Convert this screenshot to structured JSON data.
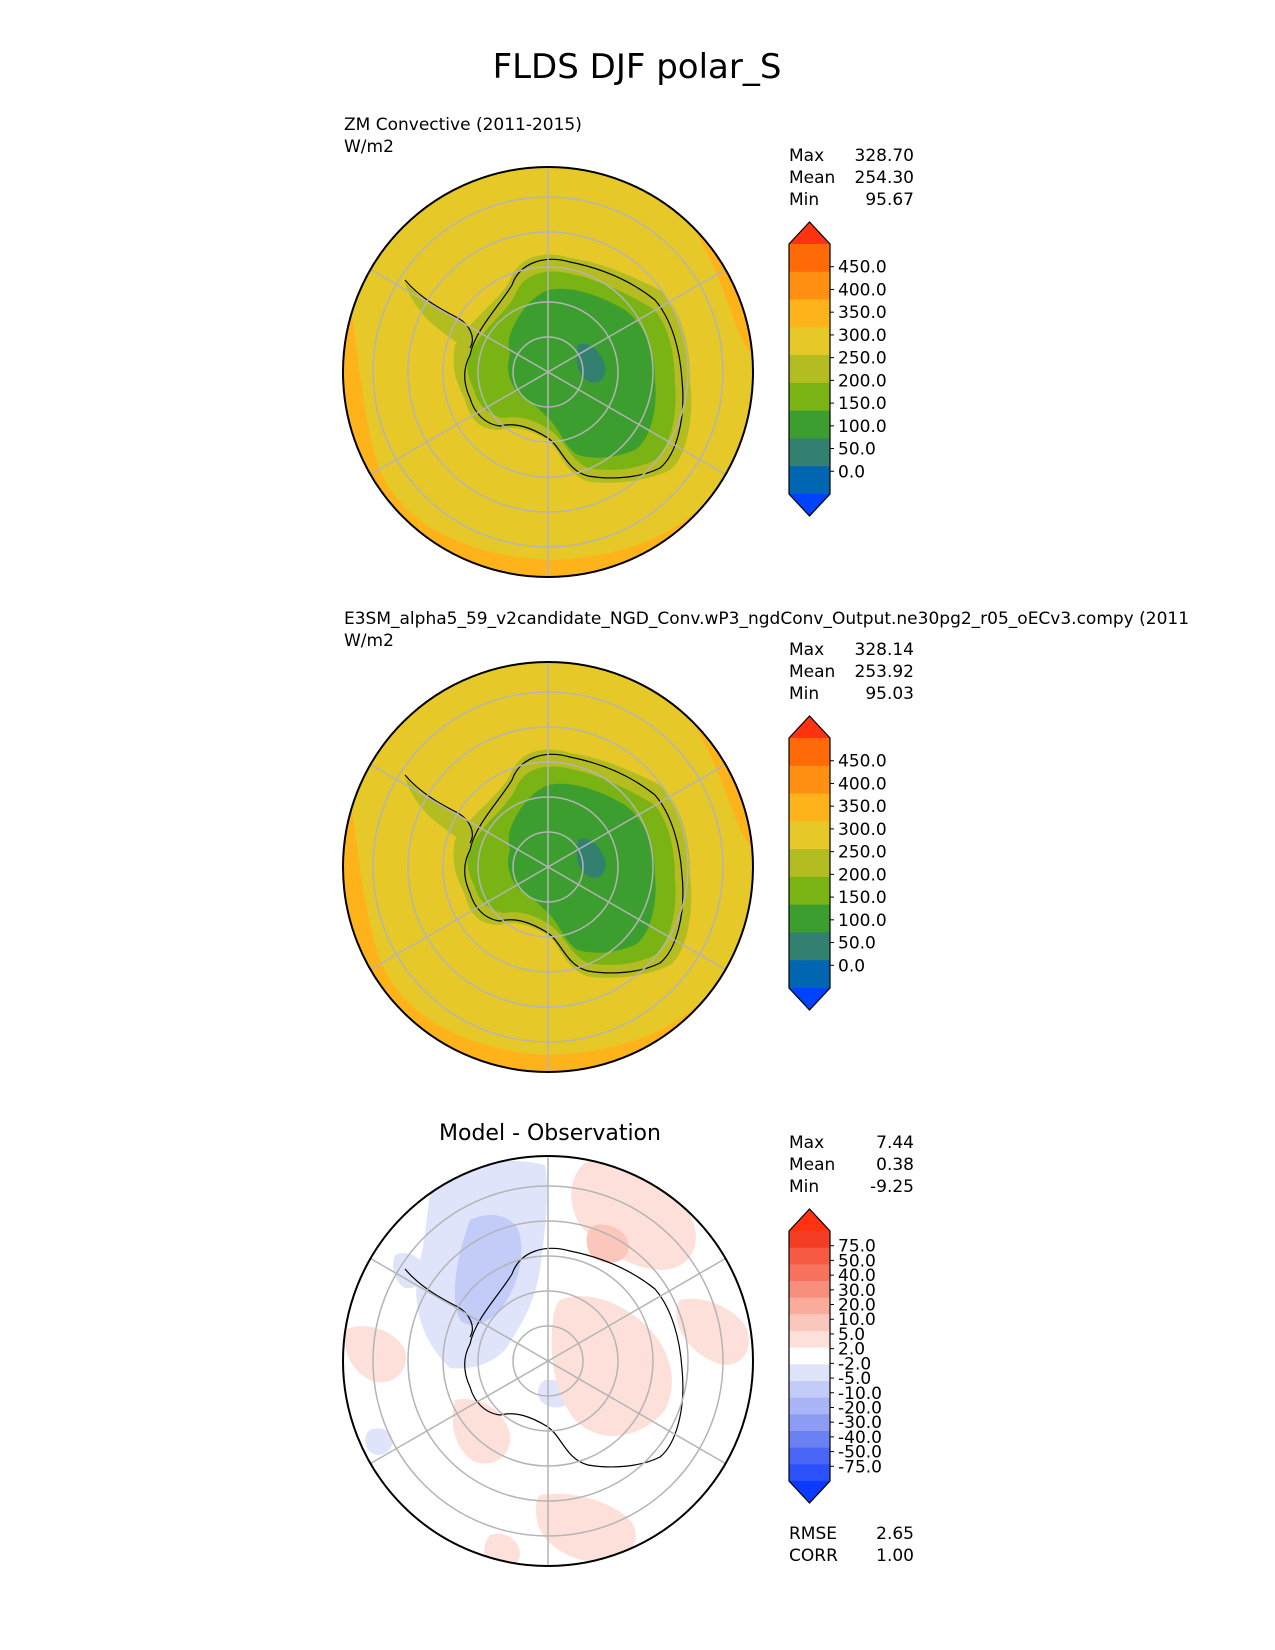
{
  "figure": {
    "title": "FLDS DJF polar_S"
  },
  "colors": {
    "abs_levels": [
      "#0043ff",
      "#0066b2",
      "#338070",
      "#3c9e2e",
      "#7ab314",
      "#b3bd21",
      "#e6c928",
      "#ffb31a",
      "#ff9011",
      "#ff6a08",
      "#ff3212"
    ],
    "diff_levels": [
      "#0c3bff",
      "#2a51fa",
      "#4a66f6",
      "#6a81f4",
      "#8c9cf4",
      "#a9b5f6",
      "#c3cbf8",
      "#dfe4fb",
      "#ffffff",
      "#fde0da",
      "#fbc7bd",
      "#f9ab9c",
      "#f88f7c",
      "#f7735e",
      "#f65a43",
      "#f53d25",
      "#ff3212"
    ],
    "map_gridline": "#b4b4b4"
  },
  "chart_data": [
    {
      "type": "heatmap",
      "projection": "polar stereographic, south pole",
      "title_left": "ZM Convective (2011-2015)",
      "units": "W/m2",
      "stats": [
        {
          "label": "Max",
          "value": "328.70"
        },
        {
          "label": "Mean",
          "value": "254.30"
        },
        {
          "label": "Min",
          "value": "95.67"
        }
      ],
      "colorbar_ticks": [
        "450.0",
        "400.0",
        "350.0",
        "300.0",
        "250.0",
        "200.0",
        "150.0",
        "100.0",
        "50.0",
        "0.0"
      ]
    },
    {
      "type": "heatmap",
      "projection": "polar stereographic, south pole",
      "title_left": "E3SM_alpha5_59_v2candidate_NGD_Conv.wP3_ngdConv_Output.ne30pg2_r05_oECv3.compy (2011",
      "units": "W/m2",
      "stats": [
        {
          "label": "Max",
          "value": "328.14"
        },
        {
          "label": "Mean",
          "value": "253.92"
        },
        {
          "label": "Min",
          "value": "95.03"
        }
      ],
      "colorbar_ticks": [
        "450.0",
        "400.0",
        "350.0",
        "300.0",
        "250.0",
        "200.0",
        "150.0",
        "100.0",
        "50.0",
        "0.0"
      ]
    },
    {
      "type": "heatmap",
      "projection": "polar stereographic, south pole",
      "title_center": "Model - Observation",
      "stats": [
        {
          "label": "Max",
          "value": "7.44"
        },
        {
          "label": "Mean",
          "value": "0.38"
        },
        {
          "label": "Min",
          "value": "-9.25"
        }
      ],
      "colorbar_ticks": [
        "75.0",
        "50.0",
        "40.0",
        "30.0",
        "20.0",
        "10.0",
        "5.0",
        "2.0",
        "-2.0",
        "-5.0",
        "-10.0",
        "-20.0",
        "-30.0",
        "-40.0",
        "-50.0",
        "-75.0"
      ],
      "footer_stats": [
        {
          "label": "RMSE",
          "value": "2.65"
        },
        {
          "label": "CORR",
          "value": "1.00"
        }
      ]
    }
  ]
}
